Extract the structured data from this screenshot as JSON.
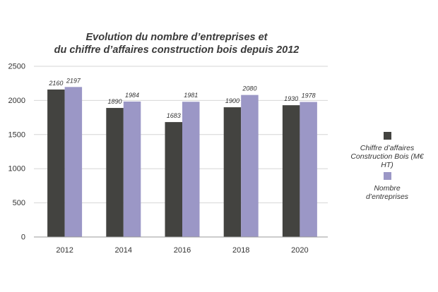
{
  "chart_data": {
    "type": "bar",
    "title_lines": [
      "Evolution du nombre d’entreprises et",
      "du chiffre d’affaires construction bois depuis 2012"
    ],
    "categories": [
      "2012",
      "2014",
      "2016",
      "2018",
      "2020"
    ],
    "series": [
      {
        "name_lines": [
          "Chiffre d’affaires",
          "Construction Bois (M€ HT)"
        ],
        "color": "#434340",
        "values": [
          2160,
          1890,
          1683,
          1900,
          1930
        ],
        "labels": [
          "2160",
          "1890",
          "1683",
          "1900",
          "1930"
        ]
      },
      {
        "name_lines": [
          "Nombre",
          "d’entreprises"
        ],
        "color": "#9b97c6",
        "values": [
          2197,
          1984,
          1981,
          2080,
          1978
        ],
        "labels": [
          "2197",
          "1984",
          "1981",
          "2080",
          "1978"
        ]
      }
    ],
    "ylim": [
      0,
      2500
    ],
    "yticks": [
      "0",
      "500",
      "1000",
      "1500",
      "2000",
      "2500"
    ],
    "grid": true,
    "legend_position": "right"
  }
}
